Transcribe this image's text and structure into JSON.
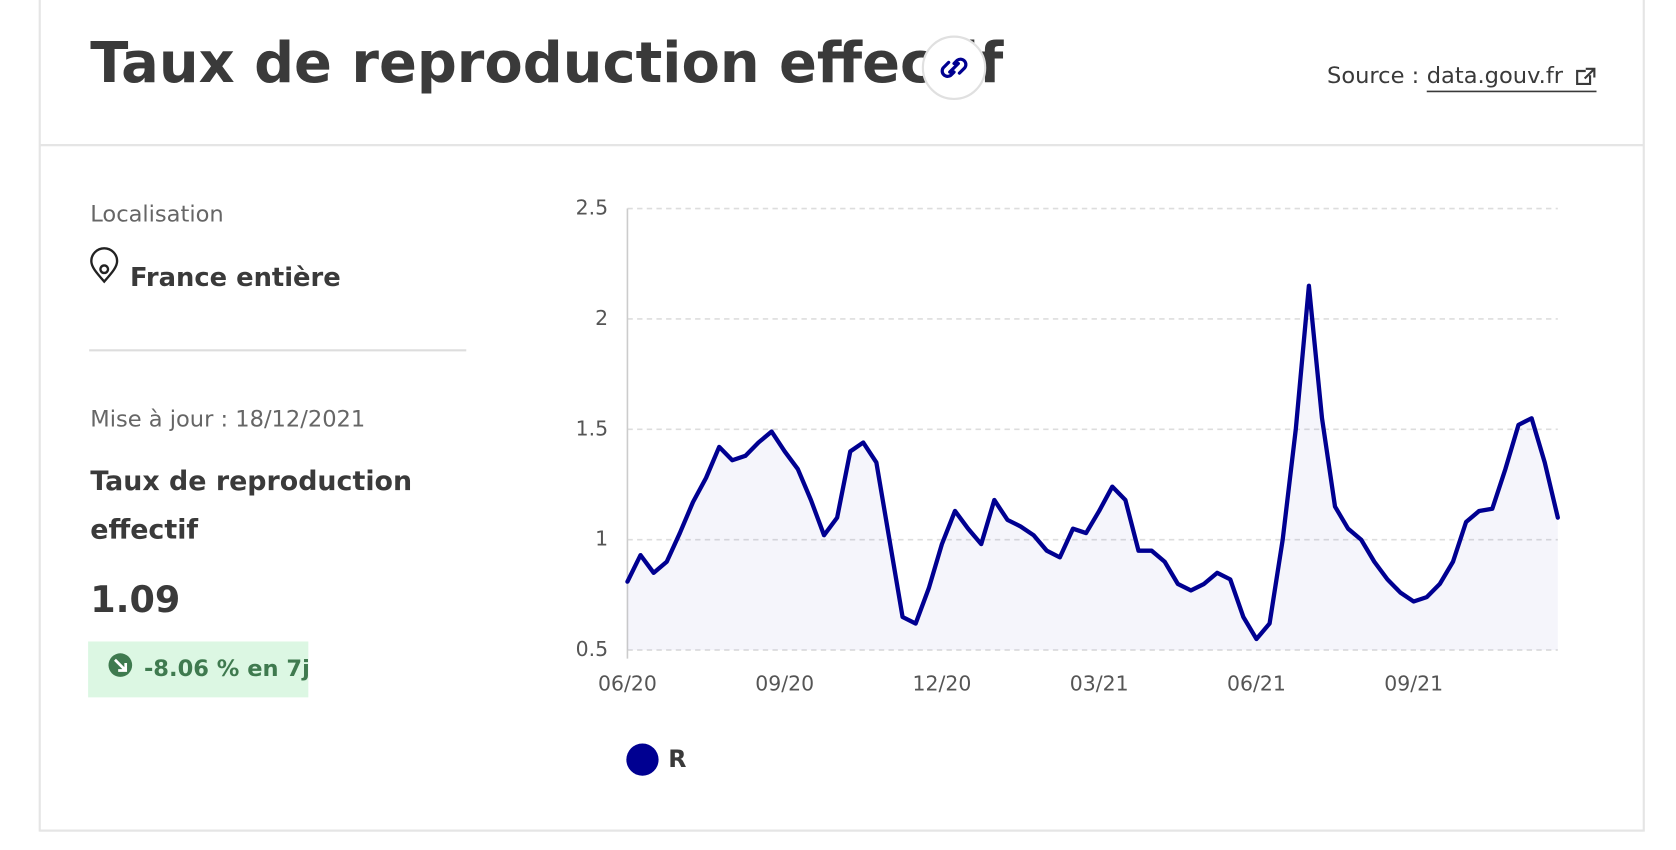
{
  "header": {
    "title": "Taux de reproduction effectif",
    "source_label": "Source :",
    "source_link": "data.gouv.fr"
  },
  "sidebar": {
    "location_label": "Localisation",
    "location": "France entière",
    "updated": "Mise à jour : 18/12/2021",
    "indicator_name": "Taux de reproduction effectif",
    "value": 1.09,
    "change": "-8.06 % en 7j"
  },
  "chart_data": {
    "type": "line",
    "categories": [
      "06/20",
      null,
      null,
      null,
      null,
      null,
      null,
      null,
      null,
      null,
      null,
      null,
      "09/20",
      null,
      null,
      null,
      null,
      null,
      null,
      null,
      null,
      null,
      null,
      null,
      "12/20",
      null,
      null,
      null,
      null,
      null,
      null,
      null,
      null,
      null,
      null,
      null,
      "03/21",
      null,
      null,
      null,
      null,
      null,
      null,
      null,
      null,
      null,
      null,
      null,
      "06/21",
      null,
      null,
      null,
      null,
      null,
      null,
      null,
      null,
      null,
      null,
      null,
      "09/21",
      null,
      null,
      null,
      null,
      null,
      null,
      null,
      null,
      null,
      null,
      null
    ],
    "series": [
      {
        "name": "R",
        "color": "#000091",
        "values": [
          0.81,
          0.93,
          0.85,
          0.9,
          1.03,
          1.17,
          1.28,
          1.42,
          1.36,
          1.38,
          1.44,
          1.49,
          1.4,
          1.32,
          1.18,
          1.02,
          1.1,
          1.4,
          1.44,
          1.35,
          1.0,
          0.65,
          0.62,
          0.78,
          0.98,
          1.13,
          1.05,
          0.98,
          1.18,
          1.09,
          1.06,
          1.02,
          0.95,
          0.92,
          1.05,
          1.03,
          1.13,
          1.24,
          1.18,
          0.95,
          0.95,
          0.9,
          0.8,
          0.77,
          0.8,
          0.85,
          0.82,
          0.65,
          0.55,
          0.62,
          1.0,
          1.5,
          2.15,
          1.55,
          1.15,
          1.05,
          1.0,
          0.9,
          0.82,
          0.76,
          0.72,
          0.74,
          0.8,
          0.9,
          1.08,
          1.13,
          1.14,
          1.32,
          1.52,
          1.55,
          1.35,
          1.1
        ]
      }
    ],
    "ylim": [
      0.5,
      2.5
    ],
    "yticks": [
      0.5,
      1,
      1.5,
      2,
      2.5
    ],
    "grid": true
  }
}
